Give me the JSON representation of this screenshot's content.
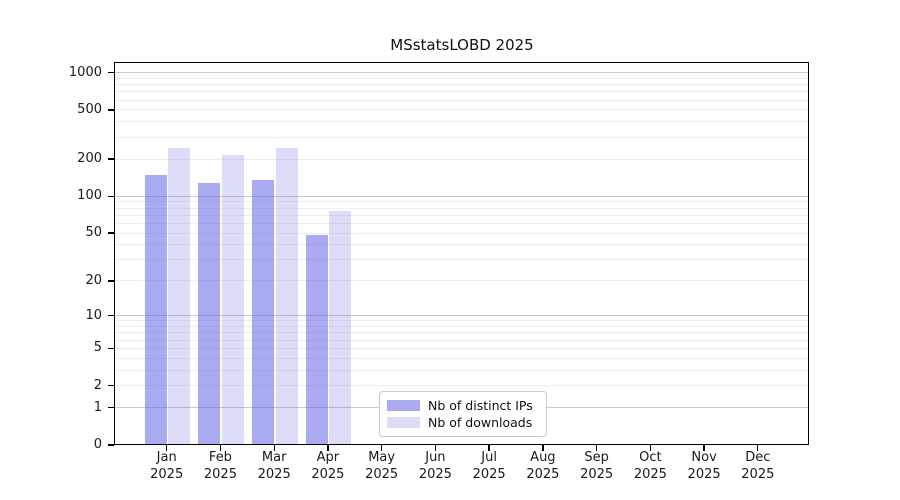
{
  "chart_data": {
    "type": "bar",
    "title": "MSstatsLOBD 2025",
    "categories": [
      "Jan",
      "Feb",
      "Mar",
      "Apr",
      "May",
      "Jun",
      "Jul",
      "Aug",
      "Sep",
      "Oct",
      "Nov",
      "Dec"
    ],
    "category_year": "2025",
    "series": [
      {
        "name": "Nb of distinct IPs",
        "color": "rgba(100,100,230,0.55)",
        "values": [
          146,
          125,
          134,
          47,
          0,
          0,
          0,
          0,
          0,
          0,
          0,
          0
        ]
      },
      {
        "name": "Nb of downloads",
        "color": "rgba(100,100,230,0.22)",
        "values": [
          242,
          212,
          242,
          75,
          0,
          0,
          0,
          0,
          0,
          0,
          0,
          0
        ]
      }
    ],
    "y_scale": "log1p",
    "y_ticks": [
      0,
      1,
      2,
      5,
      10,
      20,
      50,
      100,
      200,
      500,
      1000
    ],
    "ylim": [
      0,
      1244
    ],
    "grid": "horizontal",
    "legend_position": "bottom-center",
    "colors": {
      "grid_major": "#c9c9c9",
      "grid_minor": "#ededed",
      "axis": "#000000",
      "legend_border": "#c9c9c9",
      "text": "#1a1a1a"
    }
  }
}
